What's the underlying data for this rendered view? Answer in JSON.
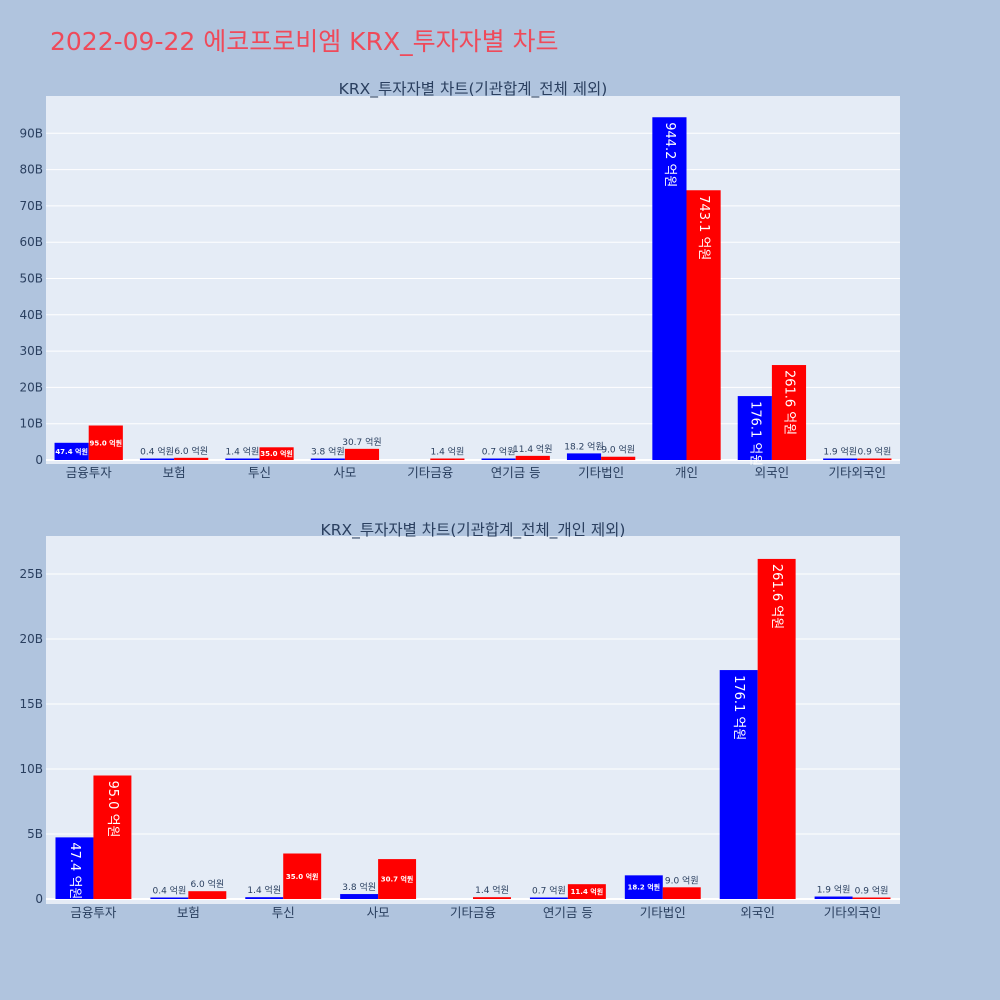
{
  "page_title": "2022-09-22 에코프로비엠 KRX_투자자별 차트",
  "colors": {
    "buy": "#0000ff",
    "sell": "#ff0000",
    "plot_bg": "#e5ecf6",
    "page_bg": "#b0c4de",
    "title": "#ef4a5a"
  },
  "chart_data": [
    {
      "type": "bar",
      "title": "KRX_투자자별 차트(기관합계_전체 제외)",
      "categories": [
        "금융투자",
        "보험",
        "투신",
        "사모",
        "기타금융",
        "연기금 등",
        "기타법인",
        "개인",
        "외국인",
        "기타외국인"
      ],
      "series": [
        {
          "values": [
            4.74,
            0.04,
            0.14,
            0.38,
            0,
            0.07,
            1.82,
            94.42,
            17.61,
            0.19
          ],
          "labels": [
            "47.4 억원",
            "0.4 억원",
            "1.4 억원",
            "3.8 억원",
            "",
            "0.7 억원",
            "18.2 억원",
            "944.2 억원",
            "176.1 억원",
            "1.9 억원"
          ]
        },
        {
          "values": [
            9.5,
            0.6,
            3.5,
            3.07,
            0.14,
            1.14,
            0.9,
            74.31,
            26.16,
            0.09
          ],
          "labels": [
            "95.0 억원",
            "6.0 억원",
            "35.0 억원",
            "30.7 억원",
            "1.4 억원",
            "11.4 억원",
            "9.0 억원",
            "743.1 억원",
            "261.6 억원",
            "0.9 억원"
          ]
        }
      ],
      "yticks": [
        "0",
        "10B",
        "20B",
        "30B",
        "40B",
        "50B",
        "60B",
        "70B",
        "80B",
        "90B"
      ],
      "ylim": [
        0,
        100
      ],
      "grid": true
    },
    {
      "type": "bar",
      "title": "KRX_투자자별 차트(기관합계_전체_개인 제외)",
      "categories": [
        "금융투자",
        "보험",
        "투신",
        "사모",
        "기타금융",
        "연기금 등",
        "기타법인",
        "외국인",
        "기타외국인"
      ],
      "series": [
        {
          "values": [
            4.74,
            0.04,
            0.14,
            0.38,
            0,
            0.07,
            1.82,
            17.61,
            0.19
          ],
          "labels": [
            "47.4 억원",
            "0.4 억원",
            "1.4 억원",
            "3.8 억원",
            "",
            "0.7 억원",
            "18.2 억원",
            "176.1 억원",
            "1.9 억원"
          ]
        },
        {
          "values": [
            9.5,
            0.6,
            3.5,
            3.07,
            0.14,
            1.14,
            0.9,
            26.16,
            0.09
          ],
          "labels": [
            "95.0 억원",
            "6.0 억원",
            "35.0 억원",
            "30.7 억원",
            "1.4 억원",
            "11.4 억원",
            "9.0 억원",
            "261.6 억원",
            "0.9 억원"
          ]
        }
      ],
      "yticks": [
        "0",
        "5B",
        "10B",
        "15B",
        "20B",
        "25B"
      ],
      "ylim": [
        0,
        28
      ],
      "grid": true
    }
  ]
}
